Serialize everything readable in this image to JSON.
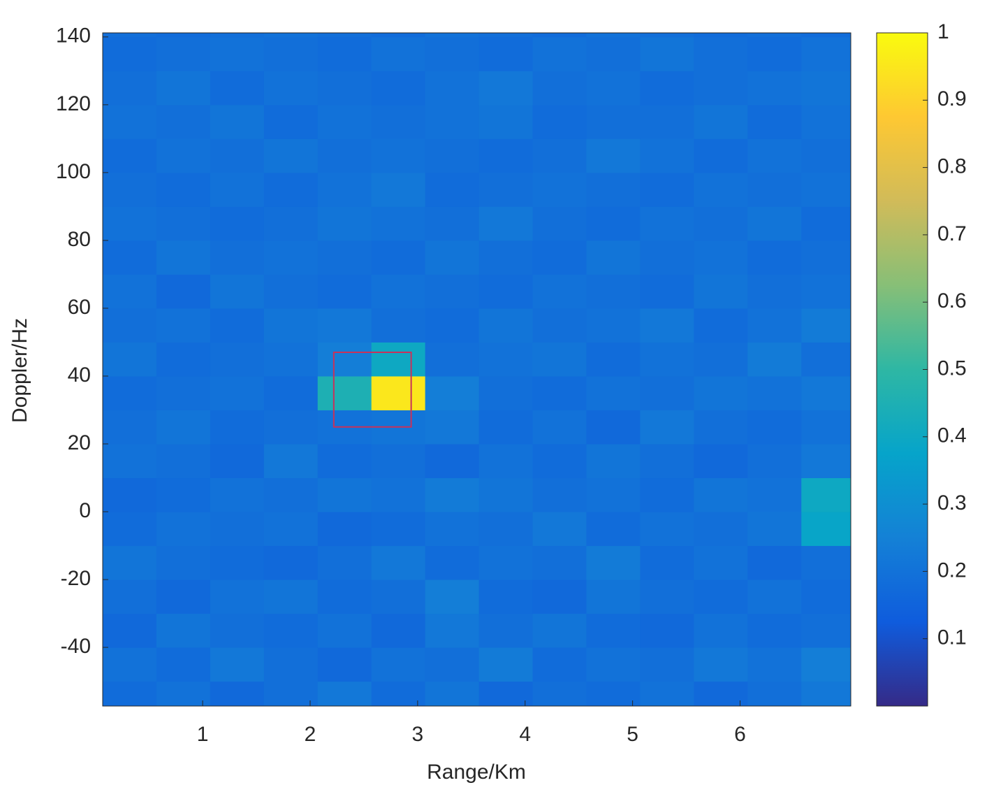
{
  "chart_data": {
    "type": "heatmap",
    "xlabel": "Range/Km",
    "ylabel": "Doppler/Hz",
    "xlim": [
      0.07,
      7.03
    ],
    "ylim": [
      -57.3,
      141.2
    ],
    "xticks": [
      1,
      2,
      3,
      4,
      5,
      6
    ],
    "yticks": [
      -40,
      -20,
      0,
      20,
      40,
      60,
      80,
      100,
      120,
      140
    ],
    "xbins": [
      0.07,
      0.57,
      1.07,
      1.57,
      2.07,
      2.57,
      3.07,
      3.57,
      4.07,
      4.57,
      5.07,
      5.57,
      6.07,
      6.57,
      7.03
    ],
    "ybins": [
      -57.3,
      -50,
      -40,
      -30,
      -20,
      -10,
      0,
      10,
      20,
      30,
      40,
      50,
      60,
      70,
      80,
      90,
      100,
      110,
      120,
      130,
      140,
      141.2
    ],
    "z": [
      [
        0.18,
        0.2,
        0.17,
        0.19,
        0.22,
        0.18,
        0.21,
        0.17,
        0.19,
        0.18,
        0.2,
        0.17,
        0.19,
        0.22
      ],
      [
        0.2,
        0.18,
        0.22,
        0.19,
        0.17,
        0.2,
        0.19,
        0.23,
        0.18,
        0.2,
        0.19,
        0.22,
        0.2,
        0.24
      ],
      [
        0.17,
        0.21,
        0.19,
        0.18,
        0.2,
        0.17,
        0.22,
        0.19,
        0.21,
        0.18,
        0.17,
        0.2,
        0.18,
        0.19
      ],
      [
        0.19,
        0.17,
        0.2,
        0.21,
        0.18,
        0.19,
        0.24,
        0.18,
        0.17,
        0.21,
        0.19,
        0.18,
        0.2,
        0.18
      ],
      [
        0.21,
        0.19,
        0.18,
        0.17,
        0.19,
        0.22,
        0.18,
        0.2,
        0.19,
        0.23,
        0.18,
        0.2,
        0.17,
        0.19
      ],
      [
        0.18,
        0.2,
        0.19,
        0.2,
        0.17,
        0.18,
        0.2,
        0.19,
        0.22,
        0.18,
        0.2,
        0.19,
        0.21,
        0.38
      ],
      [
        0.17,
        0.18,
        0.2,
        0.19,
        0.21,
        0.2,
        0.23,
        0.21,
        0.19,
        0.2,
        0.18,
        0.21,
        0.2,
        0.4
      ],
      [
        0.2,
        0.19,
        0.17,
        0.22,
        0.18,
        0.19,
        0.17,
        0.2,
        0.18,
        0.21,
        0.19,
        0.17,
        0.19,
        0.22
      ],
      [
        0.19,
        0.21,
        0.18,
        0.19,
        0.2,
        0.21,
        0.22,
        0.18,
        0.2,
        0.17,
        0.22,
        0.19,
        0.18,
        0.2
      ],
      [
        0.18,
        0.19,
        0.2,
        0.18,
        0.45,
        0.95,
        0.24,
        0.19,
        0.18,
        0.2,
        0.19,
        0.21,
        0.2,
        0.22
      ],
      [
        0.21,
        0.18,
        0.19,
        0.2,
        0.24,
        0.4,
        0.19,
        0.2,
        0.21,
        0.18,
        0.2,
        0.19,
        0.23,
        0.19
      ],
      [
        0.19,
        0.2,
        0.18,
        0.21,
        0.22,
        0.19,
        0.18,
        0.21,
        0.19,
        0.2,
        0.22,
        0.18,
        0.2,
        0.23
      ],
      [
        0.2,
        0.17,
        0.21,
        0.19,
        0.18,
        0.2,
        0.19,
        0.18,
        0.2,
        0.19,
        0.18,
        0.21,
        0.19,
        0.2
      ],
      [
        0.18,
        0.21,
        0.19,
        0.2,
        0.19,
        0.18,
        0.21,
        0.19,
        0.18,
        0.21,
        0.19,
        0.2,
        0.18,
        0.19
      ],
      [
        0.2,
        0.19,
        0.18,
        0.19,
        0.21,
        0.2,
        0.19,
        0.22,
        0.19,
        0.18,
        0.2,
        0.19,
        0.21,
        0.18
      ],
      [
        0.19,
        0.18,
        0.2,
        0.18,
        0.2,
        0.22,
        0.18,
        0.19,
        0.2,
        0.19,
        0.18,
        0.2,
        0.19,
        0.2
      ],
      [
        0.18,
        0.2,
        0.19,
        0.21,
        0.19,
        0.2,
        0.19,
        0.18,
        0.19,
        0.22,
        0.2,
        0.18,
        0.2,
        0.19
      ],
      [
        0.2,
        0.19,
        0.21,
        0.18,
        0.2,
        0.19,
        0.2,
        0.21,
        0.18,
        0.19,
        0.19,
        0.21,
        0.18,
        0.2
      ],
      [
        0.19,
        0.21,
        0.18,
        0.2,
        0.19,
        0.18,
        0.2,
        0.22,
        0.19,
        0.2,
        0.18,
        0.19,
        0.2,
        0.21
      ],
      [
        0.18,
        0.19,
        0.2,
        0.19,
        0.18,
        0.2,
        0.19,
        0.18,
        0.2,
        0.19,
        0.21,
        0.19,
        0.18,
        0.2
      ],
      [
        0.19,
        0.18,
        0.19,
        0.2,
        0.19,
        0.18,
        0.2,
        0.19,
        0.18,
        0.2,
        0.19,
        0.18,
        0.19,
        0.18
      ]
    ],
    "highlight_box": {
      "xlim": [
        2.22,
        2.94
      ],
      "ylim": [
        25,
        47
      ],
      "color": "#c8325a"
    },
    "clim": [
      0,
      1
    ],
    "cticks": [
      0.1,
      0.2,
      0.3,
      0.4,
      0.5,
      0.6,
      0.7,
      0.8,
      0.9,
      1
    ],
    "colormap": [
      "#352a87",
      "#0f5cdd",
      "#1481d6",
      "#06a4ca",
      "#2eb7a4",
      "#87bf77",
      "#d1bb59",
      "#fec832",
      "#f9fb0e"
    ]
  }
}
